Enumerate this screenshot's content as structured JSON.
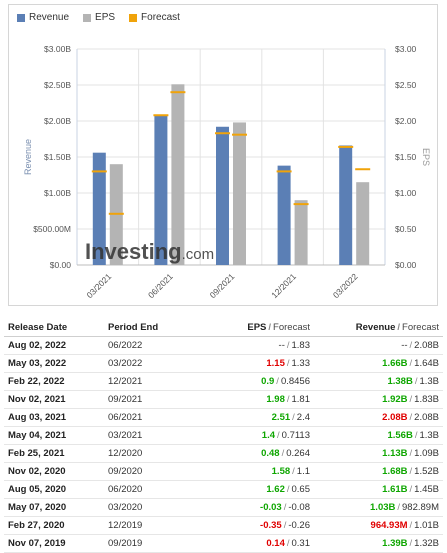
{
  "legend": {
    "items": [
      {
        "label": "Revenue",
        "color": "#5b7fb5"
      },
      {
        "label": "EPS",
        "color": "#b4b4b4"
      },
      {
        "label": "Forecast",
        "color": "#f0a30a"
      }
    ]
  },
  "watermark": {
    "brand": "Investing",
    "suffix": ".com"
  },
  "chart_data": {
    "type": "bar",
    "categories": [
      "03/2021",
      "06/2021",
      "09/2021",
      "12/2021",
      "03/2022"
    ],
    "series": [
      {
        "name": "Revenue",
        "values": [
          1.56,
          2.08,
          1.92,
          1.38,
          1.66
        ],
        "forecast": [
          1.3,
          2.08,
          1.83,
          1.3,
          1.64
        ],
        "color": "#5b7fb5"
      },
      {
        "name": "EPS",
        "values": [
          1.4,
          2.51,
          1.98,
          0.9,
          1.15
        ],
        "forecast": [
          0.7113,
          2.4,
          1.81,
          0.8456,
          1.33
        ],
        "color": "#b4b4b4"
      }
    ],
    "forecast_color": "#f0a30a",
    "ylabel": "Revenue",
    "y2label": "EPS",
    "ylim": [
      0,
      3
    ],
    "y2lim": [
      0,
      3
    ],
    "yticks": [
      "$0.00",
      "$500.00M",
      "$1.00B",
      "$1.50B",
      "$2.00B",
      "$2.50B",
      "$3.00B"
    ],
    "y2ticks": [
      "$0.00",
      "$0.50",
      "$1.00",
      "$1.50",
      "$2.00",
      "$2.50",
      "$3.00"
    ],
    "grid": true
  },
  "table": {
    "headers": {
      "release_date": "Release Date",
      "period_end": "Period End",
      "eps": "EPS",
      "revenue": "Revenue",
      "forecast": "Forecast",
      "sep": "/"
    },
    "rows": [
      {
        "date": "Aug 02, 2022",
        "period": "06/2022",
        "eps": "--",
        "eps_class": "neutral",
        "eps_fc": "1.83",
        "rev": "--",
        "rev_class": "neutral",
        "rev_fc": "2.08B"
      },
      {
        "date": "May 03, 2022",
        "period": "03/2022",
        "eps": "1.15",
        "eps_class": "red",
        "eps_fc": "1.33",
        "rev": "1.66B",
        "rev_class": "green",
        "rev_fc": "1.64B"
      },
      {
        "date": "Feb 22, 2022",
        "period": "12/2021",
        "eps": "0.9",
        "eps_class": "green",
        "eps_fc": "0.8456",
        "rev": "1.38B",
        "rev_class": "green",
        "rev_fc": "1.3B"
      },
      {
        "date": "Nov 02, 2021",
        "period": "09/2021",
        "eps": "1.98",
        "eps_class": "green",
        "eps_fc": "1.81",
        "rev": "1.92B",
        "rev_class": "green",
        "rev_fc": "1.83B"
      },
      {
        "date": "Aug 03, 2021",
        "period": "06/2021",
        "eps": "2.51",
        "eps_class": "green",
        "eps_fc": "2.4",
        "rev": "2.08B",
        "rev_class": "red",
        "rev_fc": "2.08B"
      },
      {
        "date": "May 04, 2021",
        "period": "03/2021",
        "eps": "1.4",
        "eps_class": "green",
        "eps_fc": "0.7113",
        "rev": "1.56B",
        "rev_class": "green",
        "rev_fc": "1.3B"
      },
      {
        "date": "Feb 25, 2021",
        "period": "12/2020",
        "eps": "0.48",
        "eps_class": "green",
        "eps_fc": "0.264",
        "rev": "1.13B",
        "rev_class": "green",
        "rev_fc": "1.09B"
      },
      {
        "date": "Nov 02, 2020",
        "period": "09/2020",
        "eps": "1.58",
        "eps_class": "green",
        "eps_fc": "1.1",
        "rev": "1.68B",
        "rev_class": "green",
        "rev_fc": "1.52B"
      },
      {
        "date": "Aug 05, 2020",
        "period": "06/2020",
        "eps": "1.62",
        "eps_class": "green",
        "eps_fc": "0.65",
        "rev": "1.61B",
        "rev_class": "green",
        "rev_fc": "1.45B"
      },
      {
        "date": "May 07, 2020",
        "period": "03/2020",
        "eps": "-0.03",
        "eps_class": "green",
        "eps_fc": "-0.08",
        "rev": "1.03B",
        "rev_class": "green",
        "rev_fc": "982.89M"
      },
      {
        "date": "Feb 27, 2020",
        "period": "12/2019",
        "eps": "-0.35",
        "eps_class": "red",
        "eps_fc": "-0.26",
        "rev": "964.93M",
        "rev_class": "red",
        "rev_fc": "1.01B"
      },
      {
        "date": "Nov 07, 2019",
        "period": "09/2019",
        "eps": "0.14",
        "eps_class": "red",
        "eps_fc": "0.31",
        "rev": "1.39B",
        "rev_class": "green",
        "rev_fc": "1.32B"
      }
    ]
  }
}
